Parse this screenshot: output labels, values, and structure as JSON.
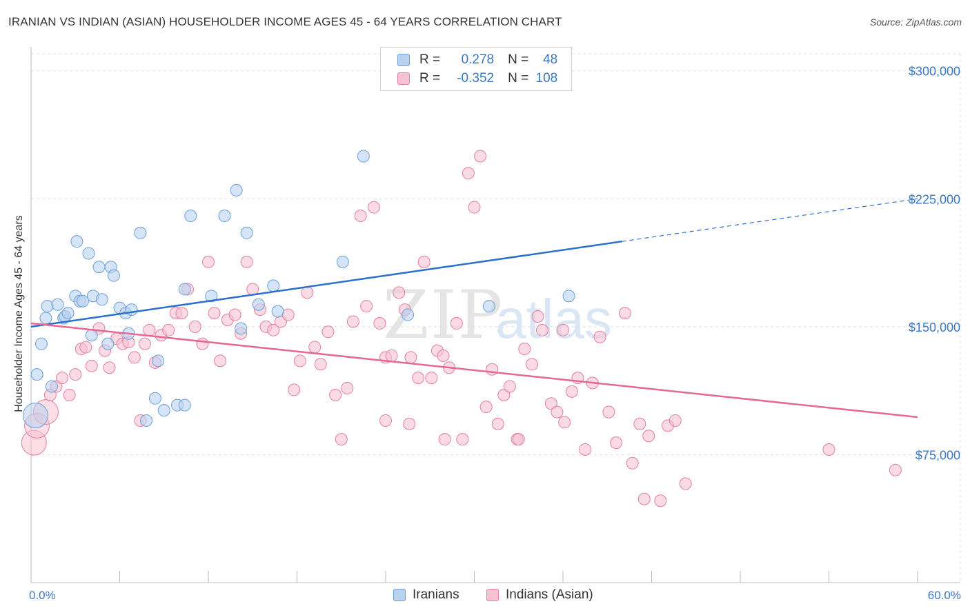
{
  "title": "IRANIAN VS INDIAN (ASIAN) HOUSEHOLDER INCOME AGES 45 - 64 YEARS CORRELATION CHART",
  "source": "Source: ZipAtlas.com",
  "watermark": {
    "zip": "ZIP",
    "atlas": "atlas"
  },
  "legend": {
    "r_label": "R =",
    "n_label": "N =",
    "rows": [
      {
        "r": "0.278",
        "n": "48"
      },
      {
        "r": "-0.352",
        "n": "108"
      }
    ]
  },
  "colors": {
    "blue_fill": "#b9d2f0",
    "blue_stroke": "#6a9fd8",
    "blue_line": "#2a6fcb",
    "pink_fill": "#f7c2d2",
    "pink_stroke": "#e47fa0",
    "pink_line": "#e46892",
    "tick_text": "#3a78c4",
    "grid": "#dddddd"
  },
  "chart_data": {
    "type": "scatter",
    "title": "IRANIAN VS INDIAN (ASIAN) HOUSEHOLDER INCOME AGES 45 - 64 YEARS CORRELATION CHART",
    "xlabel": "",
    "ylabel": "Householder Income Ages 45 - 64 years",
    "xlim": [
      0,
      60
    ],
    "ylim": [
      0,
      310000
    ],
    "x_tick_labels": [
      "0.0%",
      "60.0%"
    ],
    "y_ticks": [
      75000,
      150000,
      225000,
      300000
    ],
    "y_tick_labels": [
      "$75,000",
      "$150,000",
      "$225,000",
      "$300,000"
    ],
    "grid": "horizontal dashed",
    "series": [
      {
        "name": "Iranians",
        "r": 0.278,
        "n": 48,
        "trend": {
          "x0": 0,
          "y0": 150000,
          "x1": 40,
          "y1": 200000,
          "dashed_to_x": 60,
          "dashed_to_y": 225000
        },
        "points": [
          [
            0.3,
            98000,
            1
          ],
          [
            0.4,
            122000,
            0
          ],
          [
            0.7,
            140000,
            0
          ],
          [
            1.0,
            155000,
            0
          ],
          [
            1.1,
            162000,
            0
          ],
          [
            1.4,
            115000,
            0
          ],
          [
            1.8,
            163000,
            0
          ],
          [
            2.2,
            155000,
            0
          ],
          [
            2.3,
            156000,
            0
          ],
          [
            2.5,
            158000,
            0
          ],
          [
            3.0,
            168000,
            0
          ],
          [
            3.1,
            200000,
            0
          ],
          [
            3.3,
            165000,
            0
          ],
          [
            3.5,
            165000,
            0
          ],
          [
            3.9,
            193000,
            0
          ],
          [
            4.1,
            145000,
            0
          ],
          [
            4.2,
            168000,
            0
          ],
          [
            4.6,
            185000,
            0
          ],
          [
            4.8,
            166000,
            0
          ],
          [
            5.2,
            140000,
            0
          ],
          [
            5.4,
            185000,
            0
          ],
          [
            5.6,
            180000,
            0
          ],
          [
            6.0,
            161000,
            0
          ],
          [
            6.4,
            158000,
            0
          ],
          [
            6.6,
            146000,
            0
          ],
          [
            6.8,
            160000,
            0
          ],
          [
            7.4,
            205000,
            0
          ],
          [
            7.8,
            95000,
            0
          ],
          [
            8.4,
            108000,
            0
          ],
          [
            8.6,
            130000,
            0
          ],
          [
            9.0,
            101000,
            0
          ],
          [
            9.9,
            104000,
            0
          ],
          [
            10.4,
            172000,
            0
          ],
          [
            10.4,
            104000,
            0
          ],
          [
            10.8,
            215000,
            0
          ],
          [
            12.2,
            168000,
            0
          ],
          [
            13.1,
            215000,
            0
          ],
          [
            13.9,
            230000,
            0
          ],
          [
            14.2,
            149000,
            0
          ],
          [
            14.6,
            205000,
            0
          ],
          [
            15.4,
            163000,
            0
          ],
          [
            16.4,
            174000,
            0
          ],
          [
            16.7,
            159000,
            0
          ],
          [
            21.1,
            188000,
            0
          ],
          [
            22.5,
            250000,
            0
          ],
          [
            25.5,
            157000,
            0
          ],
          [
            31.0,
            162000,
            0
          ],
          [
            36.4,
            168000,
            0
          ]
        ]
      },
      {
        "name": "Indians (Asian)",
        "r": -0.352,
        "n": 108,
        "trend": {
          "x0": 0,
          "y0": 152000,
          "x1": 60,
          "y1": 97000
        },
        "points": [
          [
            0.2,
            82000,
            1
          ],
          [
            0.4,
            92000,
            1
          ],
          [
            1.0,
            100000,
            1
          ],
          [
            1.3,
            110000,
            0
          ],
          [
            1.7,
            115000,
            0
          ],
          [
            2.1,
            120000,
            0
          ],
          [
            2.6,
            110000,
            0
          ],
          [
            3.0,
            122000,
            0
          ],
          [
            3.4,
            137000,
            0
          ],
          [
            3.7,
            138000,
            0
          ],
          [
            4.1,
            127000,
            0
          ],
          [
            4.6,
            149000,
            0
          ],
          [
            5.0,
            136000,
            0
          ],
          [
            5.3,
            126000,
            0
          ],
          [
            5.8,
            143000,
            0
          ],
          [
            6.2,
            140000,
            0
          ],
          [
            6.6,
            141000,
            0
          ],
          [
            7.0,
            132000,
            0
          ],
          [
            7.4,
            95000,
            0
          ],
          [
            7.7,
            140000,
            0
          ],
          [
            8.0,
            148000,
            0
          ],
          [
            8.4,
            129000,
            0
          ],
          [
            8.8,
            145000,
            0
          ],
          [
            9.3,
            148000,
            0
          ],
          [
            9.8,
            158000,
            0
          ],
          [
            10.2,
            158000,
            0
          ],
          [
            10.6,
            172000,
            0
          ],
          [
            11.1,
            150000,
            0
          ],
          [
            11.6,
            140000,
            0
          ],
          [
            12.0,
            188000,
            0
          ],
          [
            12.4,
            158000,
            0
          ],
          [
            12.8,
            130000,
            0
          ],
          [
            13.3,
            154000,
            0
          ],
          [
            13.8,
            157000,
            0
          ],
          [
            14.2,
            146000,
            0
          ],
          [
            14.6,
            188000,
            0
          ],
          [
            15.0,
            172000,
            0
          ],
          [
            15.5,
            160000,
            0
          ],
          [
            15.9,
            150000,
            0
          ],
          [
            16.4,
            148000,
            0
          ],
          [
            16.9,
            153000,
            0
          ],
          [
            17.4,
            157000,
            0
          ],
          [
            17.8,
            113000,
            0
          ],
          [
            18.2,
            130000,
            0
          ],
          [
            18.7,
            170000,
            0
          ],
          [
            19.2,
            138000,
            0
          ],
          [
            19.6,
            128000,
            0
          ],
          [
            20.1,
            147000,
            0
          ],
          [
            20.6,
            110000,
            0
          ],
          [
            21.0,
            84000,
            0
          ],
          [
            21.4,
            114000,
            0
          ],
          [
            21.8,
            153000,
            0
          ],
          [
            22.3,
            215000,
            0
          ],
          [
            22.7,
            162000,
            0
          ],
          [
            23.2,
            220000,
            0
          ],
          [
            23.6,
            152000,
            0
          ],
          [
            24.0,
            132000,
            0
          ],
          [
            24.4,
            133000,
            0
          ],
          [
            24.9,
            170000,
            0
          ],
          [
            25.3,
            160000,
            0
          ],
          [
            25.7,
            132000,
            0
          ],
          [
            26.2,
            120000,
            0
          ],
          [
            26.6,
            188000,
            0
          ],
          [
            27.1,
            120000,
            0
          ],
          [
            27.5,
            136000,
            0
          ],
          [
            27.9,
            133000,
            0
          ],
          [
            28.3,
            126000,
            0
          ],
          [
            28.8,
            152000,
            0
          ],
          [
            29.2,
            84000,
            0
          ],
          [
            29.6,
            240000,
            0
          ],
          [
            30.0,
            220000,
            0
          ],
          [
            30.4,
            250000,
            0
          ],
          [
            30.8,
            103000,
            0
          ],
          [
            31.2,
            125000,
            0
          ],
          [
            31.6,
            93000,
            0
          ],
          [
            32.0,
            110000,
            0
          ],
          [
            32.4,
            115000,
            0
          ],
          [
            32.9,
            84000,
            0
          ],
          [
            33.4,
            137000,
            0
          ],
          [
            33.9,
            128000,
            0
          ],
          [
            34.3,
            156000,
            0
          ],
          [
            34.6,
            148000,
            0
          ],
          [
            35.2,
            105000,
            0
          ],
          [
            35.6,
            100000,
            0
          ],
          [
            36.1,
            94000,
            0
          ],
          [
            36.6,
            112000,
            0
          ],
          [
            37.0,
            120000,
            0
          ],
          [
            37.5,
            78000,
            0
          ],
          [
            38.0,
            117000,
            0
          ],
          [
            38.5,
            144000,
            0
          ],
          [
            39.1,
            100000,
            0
          ],
          [
            39.6,
            82000,
            0
          ],
          [
            40.2,
            158000,
            0
          ],
          [
            40.7,
            70000,
            0
          ],
          [
            41.2,
            93000,
            0
          ],
          [
            41.8,
            86000,
            0
          ],
          [
            42.6,
            48000,
            0
          ],
          [
            43.1,
            92000,
            0
          ],
          [
            43.6,
            95000,
            0
          ],
          [
            44.3,
            58000,
            0
          ],
          [
            41.5,
            49000,
            0
          ],
          [
            24.0,
            95000,
            0
          ],
          [
            25.6,
            93000,
            0
          ],
          [
            28.0,
            84000,
            0
          ],
          [
            36.0,
            148000,
            0
          ],
          [
            54.0,
            78000,
            0
          ],
          [
            58.5,
            66000,
            0
          ],
          [
            33.0,
            84000,
            0
          ]
        ]
      }
    ]
  }
}
